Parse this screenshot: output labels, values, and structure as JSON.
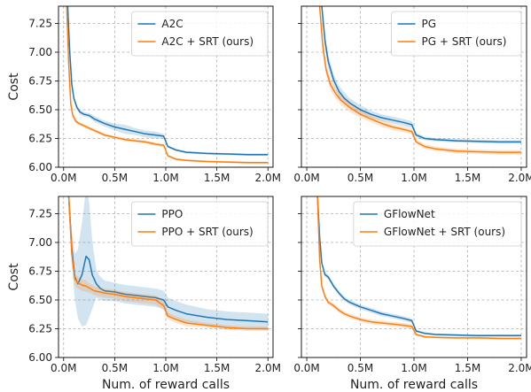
{
  "chart_data": [
    {
      "type": "line",
      "ylabel": "Cost",
      "xlabel": "",
      "xlim": [
        -0.05,
        2.05
      ],
      "ylim": [
        6.0,
        7.4
      ],
      "xticks": [
        0.0,
        0.5,
        1.0,
        1.5,
        2.0
      ],
      "xtick_labels": [
        "0.0M",
        "0.5M",
        "1.0M",
        "1.5M",
        "2.0M"
      ],
      "yticks": [
        6.0,
        6.25,
        6.5,
        6.75,
        7.0,
        7.25
      ],
      "ytick_labels": [
        "6.00",
        "6.25",
        "6.50",
        "6.75",
        "7.00",
        "7.25"
      ],
      "grid": true,
      "legend_position": "top-right",
      "series": [
        {
          "name": "A2C",
          "color": "#1f77b4",
          "x": [
            0.04,
            0.06,
            0.08,
            0.1,
            0.13,
            0.16,
            0.2,
            0.25,
            0.3,
            0.4,
            0.5,
            0.6,
            0.7,
            0.8,
            0.9,
            0.98,
            1.02,
            1.1,
            1.2,
            1.4,
            1.6,
            1.8,
            2.0
          ],
          "y": [
            7.4,
            7.0,
            6.72,
            6.6,
            6.52,
            6.48,
            6.46,
            6.45,
            6.42,
            6.38,
            6.35,
            6.33,
            6.31,
            6.29,
            6.28,
            6.27,
            6.18,
            6.15,
            6.13,
            6.12,
            6.115,
            6.11,
            6.11
          ],
          "band": [
            0.02,
            0.02,
            0.02,
            0.02,
            0.02,
            0.02,
            0.02,
            0.02,
            0.025,
            0.025,
            0.03,
            0.04,
            0.03,
            0.03,
            0.03,
            0.02,
            0.01,
            0.01,
            0.01,
            0.01,
            0.01,
            0.01,
            0.01
          ]
        },
        {
          "name": "A2C + SRT (ours)",
          "color": "#ff7f0e",
          "x": [
            0.03,
            0.05,
            0.07,
            0.09,
            0.12,
            0.15,
            0.2,
            0.25,
            0.3,
            0.4,
            0.5,
            0.6,
            0.7,
            0.8,
            0.9,
            0.98,
            1.02,
            1.1,
            1.2,
            1.4,
            1.6,
            1.8,
            2.0
          ],
          "y": [
            7.4,
            6.9,
            6.55,
            6.45,
            6.4,
            6.38,
            6.36,
            6.34,
            6.32,
            6.28,
            6.26,
            6.24,
            6.23,
            6.22,
            6.2,
            6.19,
            6.1,
            6.07,
            6.06,
            6.05,
            6.045,
            6.04,
            6.04
          ],
          "band": [
            0.02,
            0.02,
            0.02,
            0.02,
            0.02,
            0.015,
            0.015,
            0.015,
            0.015,
            0.015,
            0.015,
            0.015,
            0.015,
            0.015,
            0.015,
            0.015,
            0.01,
            0.01,
            0.01,
            0.01,
            0.01,
            0.01,
            0.01
          ]
        }
      ]
    },
    {
      "type": "line",
      "ylabel": "",
      "xlabel": "",
      "xlim": [
        -0.05,
        2.05
      ],
      "ylim": [
        6.0,
        7.4
      ],
      "xticks": [
        0.0,
        0.5,
        1.0,
        1.5,
        2.0
      ],
      "xtick_labels": [
        "0.0M",
        "0.5M",
        "1.0M",
        "1.5M",
        "2.0M"
      ],
      "yticks": [
        6.0,
        6.25,
        6.5,
        6.75,
        7.0,
        7.25
      ],
      "ytick_labels": [],
      "grid": true,
      "legend_position": "top-right",
      "series": [
        {
          "name": "PG",
          "color": "#1f77b4",
          "x": [
            0.14,
            0.17,
            0.2,
            0.25,
            0.3,
            0.35,
            0.4,
            0.5,
            0.6,
            0.7,
            0.8,
            0.9,
            0.98,
            1.02,
            1.1,
            1.2,
            1.4,
            1.6,
            1.8,
            2.0
          ],
          "y": [
            7.4,
            7.1,
            6.92,
            6.76,
            6.66,
            6.6,
            6.56,
            6.5,
            6.46,
            6.43,
            6.41,
            6.39,
            6.37,
            6.28,
            6.25,
            6.24,
            6.23,
            6.225,
            6.22,
            6.22
          ],
          "band": [
            0.06,
            0.06,
            0.06,
            0.05,
            0.05,
            0.05,
            0.04,
            0.04,
            0.03,
            0.03,
            0.03,
            0.03,
            0.03,
            0.02,
            0.015,
            0.015,
            0.015,
            0.015,
            0.015,
            0.015
          ]
        },
        {
          "name": "PG + SRT (ours)",
          "color": "#ff7f0e",
          "x": [
            0.12,
            0.15,
            0.18,
            0.22,
            0.27,
            0.32,
            0.4,
            0.5,
            0.6,
            0.7,
            0.8,
            0.9,
            0.98,
            1.02,
            1.1,
            1.2,
            1.4,
            1.6,
            1.8,
            2.0
          ],
          "y": [
            7.4,
            7.05,
            6.85,
            6.72,
            6.64,
            6.58,
            6.52,
            6.46,
            6.42,
            6.38,
            6.35,
            6.33,
            6.31,
            6.22,
            6.18,
            6.16,
            6.14,
            6.135,
            6.13,
            6.13
          ],
          "band": [
            0.06,
            0.06,
            0.05,
            0.05,
            0.04,
            0.04,
            0.04,
            0.03,
            0.03,
            0.03,
            0.025,
            0.025,
            0.025,
            0.02,
            0.02,
            0.02,
            0.02,
            0.02,
            0.02,
            0.02
          ]
        }
      ]
    },
    {
      "type": "line",
      "ylabel": "Cost",
      "xlabel": "Num. of reward calls",
      "xlim": [
        -0.05,
        2.05
      ],
      "ylim": [
        6.0,
        7.4
      ],
      "xticks": [
        0.0,
        0.5,
        1.0,
        1.5,
        2.0
      ],
      "xtick_labels": [
        "0.0M",
        "0.5M",
        "1.0M",
        "1.5M",
        "2.0M"
      ],
      "yticks": [
        6.0,
        6.25,
        6.5,
        6.75,
        7.0,
        7.25
      ],
      "ytick_labels": [
        "6.00",
        "6.25",
        "6.50",
        "6.75",
        "7.00",
        "7.25"
      ],
      "grid": true,
      "legend_position": "top-right",
      "series": [
        {
          "name": "PPO",
          "color": "#1f77b4",
          "x": [
            0.05,
            0.08,
            0.11,
            0.14,
            0.18,
            0.22,
            0.25,
            0.28,
            0.32,
            0.36,
            0.4,
            0.5,
            0.6,
            0.7,
            0.8,
            0.9,
            0.98,
            1.02,
            1.1,
            1.2,
            1.4,
            1.6,
            1.8,
            2.0
          ],
          "y": [
            7.4,
            6.95,
            6.7,
            6.64,
            6.72,
            6.88,
            6.85,
            6.72,
            6.64,
            6.6,
            6.58,
            6.57,
            6.55,
            6.54,
            6.53,
            6.52,
            6.5,
            6.44,
            6.41,
            6.38,
            6.35,
            6.33,
            6.32,
            6.31
          ],
          "band": [
            0.1,
            0.15,
            0.2,
            0.3,
            0.45,
            0.6,
            0.5,
            0.3,
            0.12,
            0.1,
            0.09,
            0.08,
            0.08,
            0.08,
            0.08,
            0.08,
            0.08,
            0.08,
            0.08,
            0.08,
            0.07,
            0.07,
            0.07,
            0.07
          ]
        },
        {
          "name": "PPO + SRT (ours)",
          "color": "#ff7f0e",
          "x": [
            0.05,
            0.08,
            0.11,
            0.14,
            0.18,
            0.22,
            0.26,
            0.3,
            0.35,
            0.4,
            0.5,
            0.6,
            0.7,
            0.8,
            0.9,
            0.98,
            1.02,
            1.1,
            1.2,
            1.4,
            1.6,
            1.8,
            2.0
          ],
          "y": [
            7.4,
            6.9,
            6.68,
            6.65,
            6.63,
            6.62,
            6.6,
            6.58,
            6.57,
            6.56,
            6.55,
            6.53,
            6.52,
            6.51,
            6.5,
            6.45,
            6.36,
            6.33,
            6.3,
            6.28,
            6.26,
            6.25,
            6.25
          ],
          "band": [
            0.05,
            0.05,
            0.05,
            0.05,
            0.05,
            0.05,
            0.04,
            0.04,
            0.04,
            0.04,
            0.04,
            0.04,
            0.04,
            0.04,
            0.04,
            0.04,
            0.03,
            0.03,
            0.03,
            0.02,
            0.02,
            0.02,
            0.02
          ]
        }
      ]
    },
    {
      "type": "line",
      "ylabel": "",
      "xlabel": "Num. of reward calls",
      "xlim": [
        -0.05,
        2.05
      ],
      "ylim": [
        6.0,
        7.4
      ],
      "xticks": [
        0.0,
        0.5,
        1.0,
        1.5,
        2.0
      ],
      "xtick_labels": [
        "0.0M",
        "0.5M",
        "1.0M",
        "1.5M",
        "2.0M"
      ],
      "yticks": [
        6.0,
        6.25,
        6.5,
        6.75,
        7.0,
        7.25
      ],
      "ytick_labels": [],
      "grid": true,
      "legend_position": "top-right",
      "series": [
        {
          "name": "GFlowNet",
          "color": "#1f77b4",
          "x": [
            0.1,
            0.12,
            0.14,
            0.17,
            0.2,
            0.25,
            0.3,
            0.35,
            0.4,
            0.5,
            0.6,
            0.7,
            0.8,
            0.9,
            0.98,
            1.02,
            1.1,
            1.2,
            1.4,
            1.6,
            1.8,
            2.0
          ],
          "y": [
            7.4,
            7.05,
            6.82,
            6.72,
            6.7,
            6.62,
            6.56,
            6.51,
            6.48,
            6.44,
            6.41,
            6.38,
            6.36,
            6.34,
            6.32,
            6.23,
            6.21,
            6.2,
            6.195,
            6.19,
            6.19,
            6.19
          ],
          "band": [
            0.02,
            0.02,
            0.02,
            0.02,
            0.02,
            0.02,
            0.02,
            0.02,
            0.02,
            0.02,
            0.02,
            0.02,
            0.02,
            0.02,
            0.02,
            0.01,
            0.01,
            0.01,
            0.01,
            0.01,
            0.01,
            0.01
          ]
        },
        {
          "name": "GFlowNet + SRT (ours)",
          "color": "#ff7f0e",
          "x": [
            0.1,
            0.12,
            0.14,
            0.17,
            0.2,
            0.25,
            0.3,
            0.35,
            0.4,
            0.5,
            0.6,
            0.7,
            0.8,
            0.9,
            0.98,
            1.02,
            1.1,
            1.2,
            1.4,
            1.6,
            1.8,
            2.0
          ],
          "y": [
            7.4,
            6.85,
            6.62,
            6.53,
            6.48,
            6.45,
            6.41,
            6.38,
            6.36,
            6.33,
            6.31,
            6.3,
            6.29,
            6.28,
            6.27,
            6.2,
            6.18,
            6.175,
            6.17,
            6.17,
            6.165,
            6.165
          ],
          "band": [
            0.02,
            0.02,
            0.02,
            0.02,
            0.02,
            0.02,
            0.02,
            0.02,
            0.02,
            0.02,
            0.02,
            0.02,
            0.02,
            0.02,
            0.02,
            0.01,
            0.01,
            0.01,
            0.01,
            0.01,
            0.01,
            0.01
          ]
        }
      ]
    }
  ]
}
